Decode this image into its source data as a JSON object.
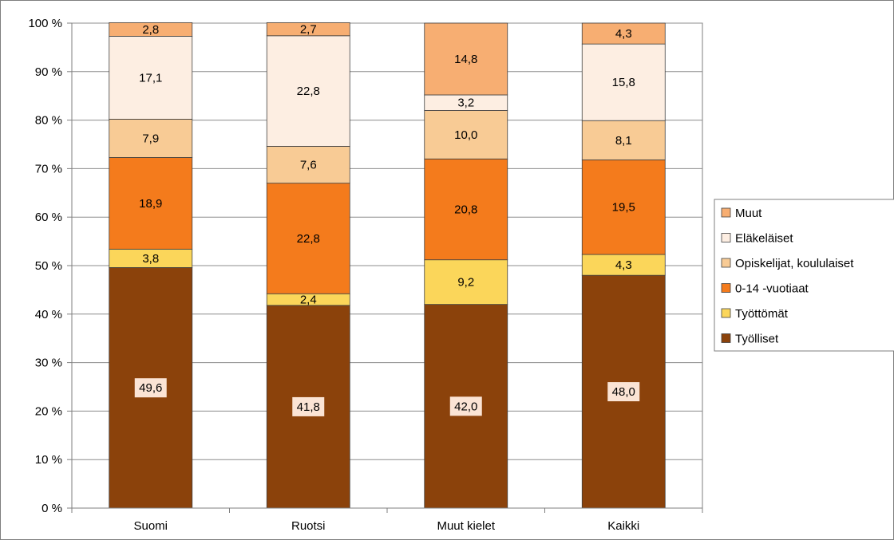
{
  "chart_data": {
    "type": "bar",
    "stacked": true,
    "percent_stacked": true,
    "title": "",
    "xlabel": "",
    "ylabel": "",
    "categories": [
      "Suomi",
      "Ruotsi",
      "Muut kielet",
      "Kaikki"
    ],
    "ylim": [
      0,
      100
    ],
    "y_ticks": [
      "0 %",
      "10 %",
      "20 %",
      "30 %",
      "40 %",
      "50 %",
      "60 %",
      "70 %",
      "80 %",
      "90 %",
      "100 %"
    ],
    "grid": true,
    "legend_position": "right",
    "series": [
      {
        "name": "Työlliset",
        "color": "#8b420b",
        "values": [
          49.6,
          41.8,
          42.0,
          48.0
        ],
        "labels": [
          "49,6",
          "41,8",
          "42,0",
          "48,0"
        ],
        "label_box": "#fbe4d5"
      },
      {
        "name": "Työttömät",
        "color": "#fbd65a",
        "values": [
          3.8,
          2.4,
          9.2,
          4.3
        ],
        "labels": [
          "3,8",
          "2,4",
          "9,2",
          "4,3"
        ]
      },
      {
        "name": "0-14 -vuotiaat",
        "color": "#f47b1c",
        "values": [
          18.9,
          22.8,
          20.8,
          19.5
        ],
        "labels": [
          "18,9",
          "22,8",
          "20,8",
          "19,5"
        ]
      },
      {
        "name": "Opiskelijat, koululaiset",
        "color": "#f8cb95",
        "values": [
          7.9,
          7.6,
          10.0,
          8.1
        ],
        "labels": [
          "7,9",
          "7,6",
          "10,0",
          "8,1"
        ]
      },
      {
        "name": "Eläkeläiset",
        "color": "#fdeee2",
        "values": [
          17.1,
          22.8,
          3.2,
          15.8
        ],
        "labels": [
          "17,1",
          "22,8",
          "3,2",
          "15,8"
        ]
      },
      {
        "name": "Muut",
        "color": "#f7ae72",
        "values": [
          2.8,
          2.7,
          14.8,
          4.3
        ],
        "labels": [
          "2,8",
          "2,7",
          "14,8",
          "4,3"
        ]
      }
    ],
    "legend_order": [
      "Muut",
      "Eläkeläiset",
      "Opiskelijat, koululaiset",
      "0-14 -vuotiaat",
      "Työttömät",
      "Työlliset"
    ]
  }
}
